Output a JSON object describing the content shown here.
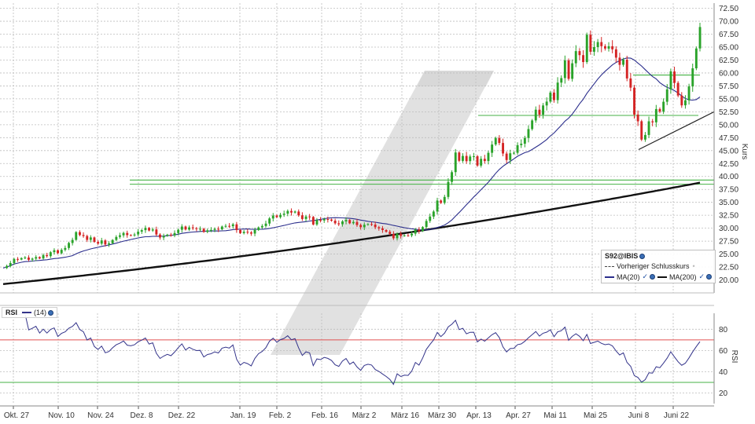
{
  "chart_data": [
    {
      "type": "candlestick",
      "symbol": "S92@IBIS",
      "ylabel": "Kurs",
      "ylim": [
        17.5,
        73.5
      ],
      "yticks": [
        20.0,
        22.5,
        25.0,
        27.5,
        30.0,
        32.5,
        35.0,
        37.5,
        40.0,
        42.5,
        45.0,
        47.5,
        50.0,
        52.5,
        55.0,
        57.5,
        60.0,
        62.5,
        65.0,
        67.5,
        70.0,
        72.5
      ],
      "grid": true,
      "legend": {
        "placement": "bottom-right",
        "title": "S92@IBIS",
        "entries": [
          "Vorheriger Schlusskurs",
          "MA(20)",
          "MA(200)"
        ]
      },
      "close_start": 22.3,
      "daily_change_pct": [
        1.8,
        2.5,
        3.4,
        -0.5,
        1.2,
        0.4,
        -1.8,
        0.9,
        1.3,
        -1.1,
        2.7,
        -0.8,
        3.1,
        1.5,
        -2.2,
        2.6,
        1.4,
        3.7,
        2.2,
        5.4,
        -1.9,
        -0.7,
        -2.6,
        1.7,
        -3.1,
        -1.2,
        2.3,
        -2.8,
        0.8,
        2.4,
        2.1,
        1.1,
        1.6,
        -1.4,
        -0.2,
        0.6,
        1.9,
        1.0,
        1.5,
        -1.7,
        0.7,
        -3.3,
        -2.0,
        1.1,
        0.8,
        -0.5,
        1.6,
        2.2,
        2.1,
        -1.9,
        1.4,
        -0.6,
        -0.4,
        0.1,
        -2.0,
        1.0,
        0.3,
        0.7,
        -0.3,
        1.8,
        0.4,
        -0.2,
        1.2,
        -3.6,
        -2.0,
        0.9,
        -0.4,
        -0.8,
        2.4,
        1.7,
        0.9,
        1.5,
        3.2,
        1.8,
        -1.0,
        1.4,
        0.7,
        1.6,
        -0.9,
        0.6,
        -2.2,
        -2.2,
        1.5,
        -0.3,
        -4.5,
        2.8,
        -0.3,
        0.9,
        -0.3,
        -0.7,
        -1.6,
        -0.6,
        1.8,
        0.9,
        -2.0,
        0.8,
        -1.9,
        -1.4,
        1.6,
        0.4,
        -0.3,
        -1.7,
        -0.7,
        -1.1,
        -1.1,
        -1.4,
        -2.9,
        3.1,
        -1.4,
        0.4,
        -0.1,
        1.2,
        2.8,
        -1.0,
        2.6,
        3.9,
        2.7,
        3.0,
        6.4,
        -1.3,
        3.3,
        8.1,
        4.8,
        9.3,
        -3.6,
        2.2,
        -2.3,
        2.1,
        0.1,
        -4.1,
        3.1,
        -1.0,
        3.7,
        3.6,
        2.7,
        -2.0,
        -4.4,
        -2.8,
        3.0,
        0.2,
        3.3,
        0.6,
        2.4,
        3.6,
        3.4,
        4.1,
        -1.8,
        3.4,
        1.4,
        3.2,
        -2.6,
        6.2,
        1.5,
        5.8,
        -5.7,
        5.1,
        3.8,
        -1.2,
        -2.1,
        8.5,
        -4.9,
        1.4,
        1.5,
        -1.2,
        -0.7,
        0.7,
        -0.9,
        -2.5,
        -2.2,
        1.6,
        -5.8,
        -3.0,
        -9.1,
        -2.5,
        -7.0,
        1.9,
        5.5,
        -0.4,
        5.1,
        -0.9,
        3.6,
        4.4,
        6.1,
        -3.7,
        -4.2,
        -3.4,
        1.8,
        4.9,
        6.1,
        6.3,
        6.4
      ],
      "moving_averages": [
        {
          "name": "MA(20)",
          "color": "#2b2e8c",
          "period": 20
        },
        {
          "name": "MA(200)",
          "color": "#111111",
          "start": 19.2,
          "end": 38.8
        }
      ],
      "horizontal_lines": [
        {
          "y": 39.3,
          "color": "#44b244"
        },
        {
          "y": 38.5,
          "color": "#44b244"
        },
        {
          "y": 59.6,
          "color": "#44b244"
        },
        {
          "y": 51.8,
          "color": "#44b244"
        }
      ],
      "trendline": {
        "from": {
          "date": "Juni 8",
          "y": 45.2
        },
        "to": {
          "date": "Juni 29",
          "y": 52.5
        },
        "color": "#222222"
      }
    },
    {
      "type": "line",
      "name": "RSI",
      "series": [
        {
          "name": "(14)",
          "color": "#33338a"
        }
      ],
      "ylim": [
        10,
        95
      ],
      "yticks": [
        20,
        40,
        60,
        80
      ],
      "ylabel": "RSI",
      "reference_lines": [
        {
          "y": 70,
          "color": "#e05050"
        },
        {
          "y": 30,
          "color": "#44b244"
        }
      ]
    }
  ],
  "xaxis": {
    "labels": [
      "Okt. 27",
      "Nov. 10",
      "Nov. 24",
      "Dez. 8",
      "Dez. 22",
      "Jan. 19",
      "Feb. 2",
      "Feb. 16",
      "März 2",
      "März 16",
      "März 30",
      "Apr. 13",
      "Apr. 27",
      "Mai 11",
      "Mai 25",
      "Juni 8",
      "Juni 22"
    ]
  },
  "rsi_legend": {
    "label": "RSI",
    "period": "(14)"
  },
  "colors": {
    "up": "#2aa32a",
    "down": "#d42424",
    "grid": "#bdbdbd",
    "watermark": "#dcdcdc"
  }
}
